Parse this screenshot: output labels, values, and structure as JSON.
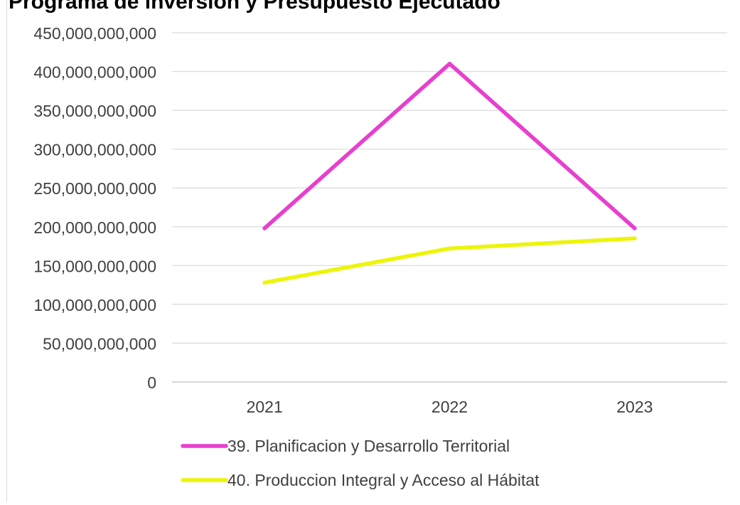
{
  "chart_data": {
    "type": "line",
    "title": "Programa de inversión y Presupuesto Ejecutado",
    "xlabel": "",
    "ylabel": "",
    "categories": [
      "2021",
      "2022",
      "2023"
    ],
    "ylim": [
      0,
      450000000000
    ],
    "yticks": [
      "0",
      "50,000,000,000",
      "100,000,000,000",
      "150,000,000,000",
      "200,000,000,000",
      "250,000,000,000",
      "300,000,000,000",
      "350,000,000,000",
      "400,000,000,000",
      "450,000,000,000"
    ],
    "ytick_values": [
      0,
      50000000000,
      100000000000,
      150000000000,
      200000000000,
      250000000000,
      300000000000,
      350000000000,
      400000000000,
      450000000000
    ],
    "grid": true,
    "legend_position": "bottom",
    "series": [
      {
        "name": "39. Planificacion y Desarrollo Territorial",
        "values": [
          198000000000,
          410000000000,
          198000000000
        ],
        "color": "#e83fcf"
      },
      {
        "name": "40. Produccion Integral y Acceso al Hábitat",
        "values": [
          128000000000,
          172000000000,
          185000000000
        ],
        "color": "#ecf50a"
      }
    ]
  },
  "title_visible_fragment": "Programa de inversión y Presupuesto Ejecutado"
}
